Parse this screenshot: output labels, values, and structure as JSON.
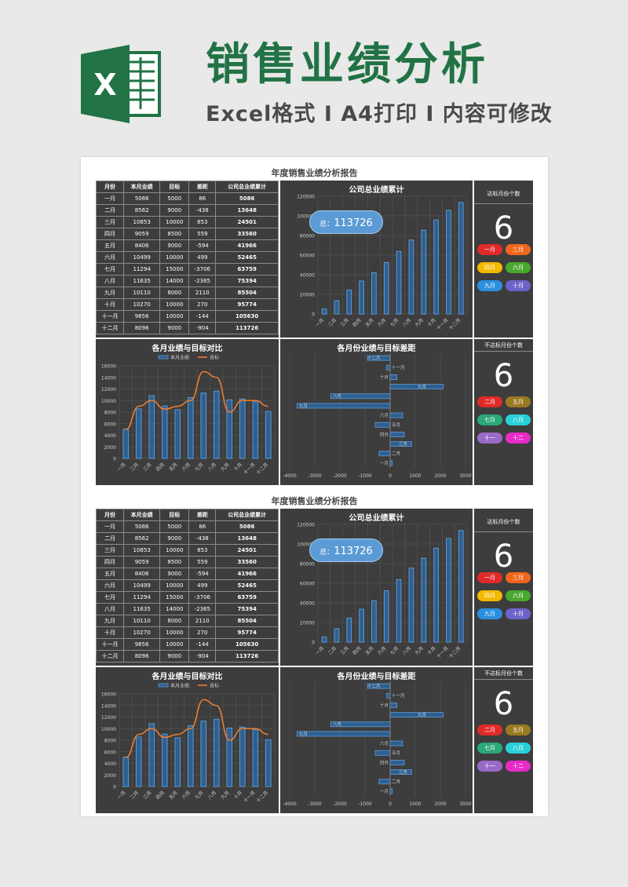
{
  "header": {
    "title": "销售业绩分析",
    "subtitle": "Excel格式 I A4打印 I 内容可修改",
    "logo_letter": "X"
  },
  "report": {
    "title": "年度销售业绩分析报告",
    "table_headers": [
      "月份",
      "本月业绩",
      "目标",
      "差距",
      "公司总业绩累计"
    ],
    "rows": [
      {
        "month": "一月",
        "actual": "5086",
        "target": "5000",
        "diff": "86",
        "cum": "5086"
      },
      {
        "month": "二月",
        "actual": "8562",
        "target": "9000",
        "diff": "-438",
        "cum": "13648"
      },
      {
        "month": "三月",
        "actual": "10853",
        "target": "10000",
        "diff": "853",
        "cum": "24501"
      },
      {
        "month": "四月",
        "actual": "9059",
        "target": "8500",
        "diff": "559",
        "cum": "33560"
      },
      {
        "month": "五月",
        "actual": "8406",
        "target": "9000",
        "diff": "-594",
        "cum": "41966"
      },
      {
        "month": "六月",
        "actual": "10499",
        "target": "10000",
        "diff": "499",
        "cum": "52465"
      },
      {
        "month": "七月",
        "actual": "11294",
        "target": "15000",
        "diff": "-3706",
        "cum": "63759"
      },
      {
        "month": "八月",
        "actual": "11635",
        "target": "14000",
        "diff": "-2365",
        "cum": "75394"
      },
      {
        "month": "九月",
        "actual": "10110",
        "target": "8000",
        "diff": "2110",
        "cum": "85504"
      },
      {
        "month": "十月",
        "actual": "10270",
        "target": "10000",
        "diff": "270",
        "cum": "95774"
      },
      {
        "month": "十一月",
        "actual": "9856",
        "target": "10000",
        "diff": "-144",
        "cum": "105630"
      },
      {
        "month": "十二月",
        "actual": "8096",
        "target": "9000",
        "diff": "-904",
        "cum": "113726"
      }
    ],
    "cumulative_panel_title": "公司总业绩累计",
    "total_prefix": "总：",
    "total_value": "113726",
    "reached_label": "达标月份个数",
    "reached_count": "6",
    "reached_months": [
      {
        "label": "一月",
        "color": "#e02a2a"
      },
      {
        "label": "三月",
        "color": "#f2661c"
      },
      {
        "label": "四月",
        "color": "#f4b800"
      },
      {
        "label": "六月",
        "color": "#4aa82c"
      },
      {
        "label": "九月",
        "color": "#2a8fe0"
      },
      {
        "label": "十月",
        "color": "#6c63c8"
      }
    ],
    "missed_label": "不达标月份个数",
    "missed_count": "6",
    "missed_months": [
      {
        "label": "二月",
        "color": "#e02a2a"
      },
      {
        "label": "五月",
        "color": "#9a7a20"
      },
      {
        "label": "七月",
        "color": "#2aa878"
      },
      {
        "label": "八月",
        "color": "#2ad0d8"
      },
      {
        "label": "十一",
        "color": "#9a6ac8"
      },
      {
        "label": "十二",
        "color": "#e82ac8"
      }
    ],
    "compare_panel_title": "各月业绩与目标对比",
    "gap_panel_title": "各月份业绩与目标差距"
  },
  "colors": {
    "panel": "#3d3d3d",
    "bar": "#4e8fd0",
    "line": "#ed7d31",
    "brand": "#217346"
  },
  "chart_data": [
    {
      "type": "bar",
      "title": "公司总业绩累计",
      "categories": [
        "一月",
        "二月",
        "三月",
        "四月",
        "五月",
        "六月",
        "七月",
        "八月",
        "九月",
        "十月",
        "十一月",
        "十二月"
      ],
      "values": [
        5086,
        13648,
        24501,
        33560,
        41966,
        52465,
        63759,
        75394,
        85504,
        95774,
        105630,
        113726
      ],
      "ylim": [
        0,
        120000
      ],
      "yticks": [
        0,
        20000,
        40000,
        60000,
        80000,
        100000,
        120000
      ],
      "grid": true
    },
    {
      "type": "bar",
      "title": "各月业绩与目标对比",
      "categories": [
        "一月",
        "二月",
        "三月",
        "四月",
        "五月",
        "六月",
        "七月",
        "八月",
        "九月",
        "十月",
        "十一月",
        "十二月"
      ],
      "series": [
        {
          "name": "本月业绩",
          "type": "bar",
          "values": [
            5086,
            8562,
            10853,
            9059,
            8406,
            10499,
            11294,
            11635,
            10110,
            10270,
            9856,
            8096
          ]
        },
        {
          "name": "目标",
          "type": "line",
          "values": [
            5000,
            9000,
            10000,
            8500,
            9000,
            10000,
            15000,
            14000,
            8000,
            10000,
            10000,
            9000
          ]
        }
      ],
      "ylim": [
        0,
        16000
      ],
      "yticks": [
        0,
        2000,
        4000,
        6000,
        8000,
        10000,
        12000,
        14000,
        16000
      ],
      "legend": "top",
      "grid": true
    },
    {
      "type": "bar",
      "orientation": "horizontal",
      "title": "各月份业绩与目标差距",
      "categories": [
        "一月",
        "二月",
        "三月",
        "四月",
        "五月",
        "六月",
        "七月",
        "八月",
        "九月",
        "十月",
        "十一月",
        "十二月"
      ],
      "values": [
        86,
        -438,
        853,
        559,
        -594,
        499,
        -3706,
        -2365,
        2110,
        270,
        -144,
        -904
      ],
      "xlim": [
        -4000,
        3000
      ],
      "xticks": [
        -4000,
        -3000,
        -2000,
        -1000,
        0,
        1000,
        2000,
        3000
      ],
      "grid": true
    }
  ]
}
